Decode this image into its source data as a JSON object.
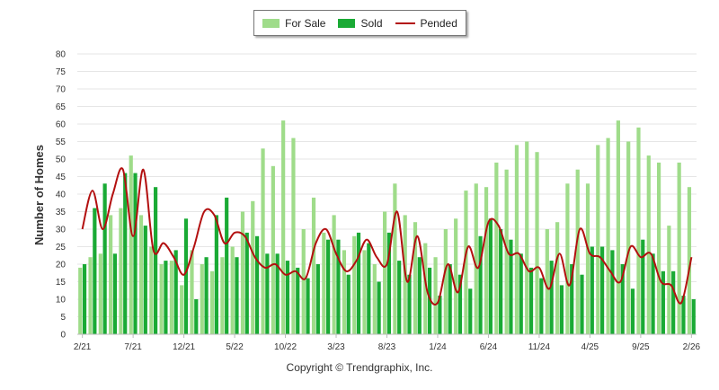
{
  "legend": {
    "for_sale": "For Sale",
    "sold": "Sold",
    "pended": "Pended"
  },
  "copyright": "Copyright © Trendgraphix, Inc.",
  "colors": {
    "for_sale": "#9fdc8a",
    "sold": "#1aaa35",
    "pended": "#b31010",
    "grid": "#e6e6e6"
  },
  "chart_data": {
    "type": "bar",
    "ylabel": "Number of Homes",
    "ylim": [
      0,
      80
    ],
    "yticks": [
      0,
      5,
      10,
      15,
      20,
      25,
      30,
      35,
      40,
      45,
      50,
      55,
      60,
      65,
      70,
      75,
      80
    ],
    "grid": true,
    "legend_position": "top-center",
    "x_tick_labels": [
      {
        "label": "2/21",
        "index": 0
      },
      {
        "label": "7/21",
        "index": 5
      },
      {
        "label": "12/21",
        "index": 10
      },
      {
        "label": "5/22",
        "index": 15
      },
      {
        "label": "10/22",
        "index": 20
      },
      {
        "label": "3/23",
        "index": 25
      },
      {
        "label": "8/23",
        "index": 30
      },
      {
        "label": "1/24",
        "index": 35
      },
      {
        "label": "6/24",
        "index": 40
      },
      {
        "label": "11/24",
        "index": 45
      },
      {
        "label": "4/25",
        "index": 50
      },
      {
        "label": "9/25",
        "index": 55
      },
      {
        "label": "2/26",
        "index": 60
      }
    ],
    "series": [
      {
        "name": "For Sale",
        "type": "bar",
        "values": [
          19,
          22,
          23,
          34,
          36,
          51,
          34,
          25,
          20,
          21,
          14,
          24,
          20,
          18,
          22,
          25,
          35,
          38,
          53,
          48,
          61,
          56,
          30,
          39,
          29,
          34,
          24,
          28,
          24,
          20,
          35,
          43,
          34,
          32,
          26,
          22,
          30,
          33,
          41,
          43,
          42,
          49,
          47,
          54,
          55,
          52,
          30,
          32,
          43,
          47,
          43,
          54,
          56,
          61,
          55,
          59,
          51,
          49,
          31,
          49,
          42
        ]
      },
      {
        "name": "Sold",
        "type": "bar",
        "values": [
          20,
          36,
          43,
          23,
          46,
          46,
          31,
          42,
          21,
          24,
          33,
          10,
          22,
          34,
          39,
          22,
          29,
          28,
          23,
          23,
          21,
          19,
          16,
          20,
          27,
          27,
          17,
          29,
          26,
          15,
          29,
          21,
          17,
          22,
          19,
          11,
          20,
          17,
          13,
          28,
          33,
          30,
          27,
          23,
          19,
          16,
          21,
          14,
          20,
          17,
          25,
          25,
          24,
          20,
          13,
          27,
          23,
          18,
          18,
          11,
          10
        ]
      },
      {
        "name": "Pended",
        "type": "line",
        "values": [
          30,
          41,
          30,
          40,
          47,
          28,
          47,
          24,
          26,
          22,
          17,
          25,
          35,
          34,
          26,
          29,
          28,
          22,
          19,
          20,
          17,
          18,
          16,
          26,
          30,
          23,
          18,
          21,
          27,
          22,
          20,
          35,
          15,
          28,
          12,
          9,
          20,
          12,
          25,
          19,
          32,
          31,
          23,
          23,
          18,
          19,
          13,
          23,
          14,
          30,
          23,
          22,
          18,
          15,
          25,
          22,
          23,
          15,
          14,
          9,
          22
        ]
      }
    ]
  }
}
